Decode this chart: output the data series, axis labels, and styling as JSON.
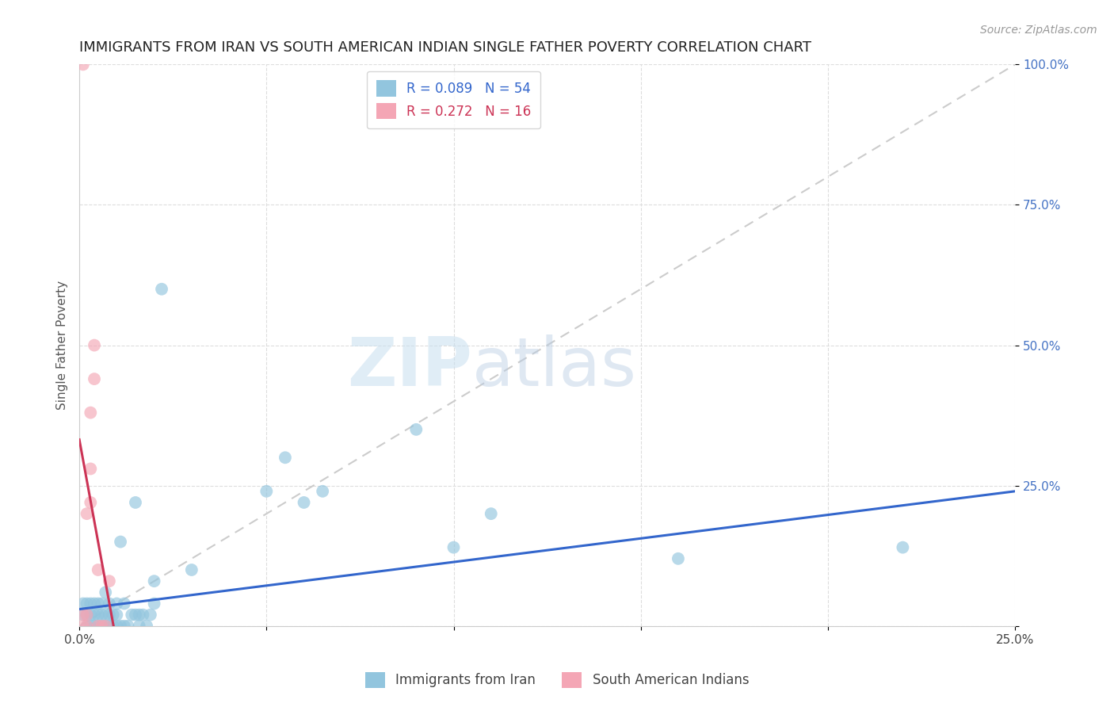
{
  "title": "IMMIGRANTS FROM IRAN VS SOUTH AMERICAN INDIAN SINGLE FATHER POVERTY CORRELATION CHART",
  "source": "Source: ZipAtlas.com",
  "ylabel": "Single Father Poverty",
  "xlim": [
    0.0,
    0.25
  ],
  "ylim": [
    0.0,
    1.0
  ],
  "blue_R": "0.089",
  "blue_N": "54",
  "pink_R": "0.272",
  "pink_N": "16",
  "blue_color": "#92c5de",
  "pink_color": "#f4a6b5",
  "blue_line_color": "#3366cc",
  "pink_line_color": "#cc3355",
  "diagonal_color": "#cccccc",
  "legend_label_blue": "Immigrants from Iran",
  "legend_label_pink": "South American Indians",
  "watermark_zip": "ZIP",
  "watermark_atlas": "atlas",
  "blue_points": [
    [
      0.001,
      0.02
    ],
    [
      0.001,
      0.04
    ],
    [
      0.002,
      0.0
    ],
    [
      0.002,
      0.02
    ],
    [
      0.002,
      0.04
    ],
    [
      0.003,
      0.0
    ],
    [
      0.003,
      0.02
    ],
    [
      0.003,
      0.04
    ],
    [
      0.004,
      0.0
    ],
    [
      0.004,
      0.02
    ],
    [
      0.004,
      0.04
    ],
    [
      0.005,
      0.0
    ],
    [
      0.005,
      0.02
    ],
    [
      0.005,
      0.04
    ],
    [
      0.006,
      0.0
    ],
    [
      0.006,
      0.02
    ],
    [
      0.006,
      0.04
    ],
    [
      0.007,
      0.0
    ],
    [
      0.007,
      0.02
    ],
    [
      0.007,
      0.06
    ],
    [
      0.008,
      0.0
    ],
    [
      0.008,
      0.02
    ],
    [
      0.008,
      0.04
    ],
    [
      0.009,
      0.0
    ],
    [
      0.009,
      0.02
    ],
    [
      0.01,
      0.0
    ],
    [
      0.01,
      0.02
    ],
    [
      0.01,
      0.04
    ],
    [
      0.011,
      0.0
    ],
    [
      0.011,
      0.15
    ],
    [
      0.012,
      0.0
    ],
    [
      0.012,
      0.04
    ],
    [
      0.013,
      0.0
    ],
    [
      0.014,
      0.02
    ],
    [
      0.015,
      0.02
    ],
    [
      0.015,
      0.22
    ],
    [
      0.016,
      0.0
    ],
    [
      0.016,
      0.02
    ],
    [
      0.017,
      0.02
    ],
    [
      0.018,
      0.0
    ],
    [
      0.019,
      0.02
    ],
    [
      0.02,
      0.04
    ],
    [
      0.02,
      0.08
    ],
    [
      0.022,
      0.6
    ],
    [
      0.03,
      0.1
    ],
    [
      0.05,
      0.24
    ],
    [
      0.055,
      0.3
    ],
    [
      0.06,
      0.22
    ],
    [
      0.065,
      0.24
    ],
    [
      0.09,
      0.35
    ],
    [
      0.1,
      0.14
    ],
    [
      0.11,
      0.2
    ],
    [
      0.16,
      0.12
    ],
    [
      0.22,
      0.14
    ]
  ],
  "pink_points": [
    [
      0.001,
      0.0
    ],
    [
      0.001,
      0.02
    ],
    [
      0.002,
      0.0
    ],
    [
      0.002,
      0.02
    ],
    [
      0.002,
      0.2
    ],
    [
      0.003,
      0.22
    ],
    [
      0.003,
      0.28
    ],
    [
      0.003,
      0.38
    ],
    [
      0.004,
      0.44
    ],
    [
      0.004,
      0.5
    ],
    [
      0.005,
      0.0
    ],
    [
      0.005,
      0.1
    ],
    [
      0.006,
      0.0
    ],
    [
      0.007,
      0.0
    ],
    [
      0.008,
      0.08
    ],
    [
      0.001,
      1.0
    ]
  ],
  "title_fontsize": 13,
  "axis_label_fontsize": 11,
  "tick_fontsize": 11,
  "legend_fontsize": 12,
  "source_fontsize": 10
}
